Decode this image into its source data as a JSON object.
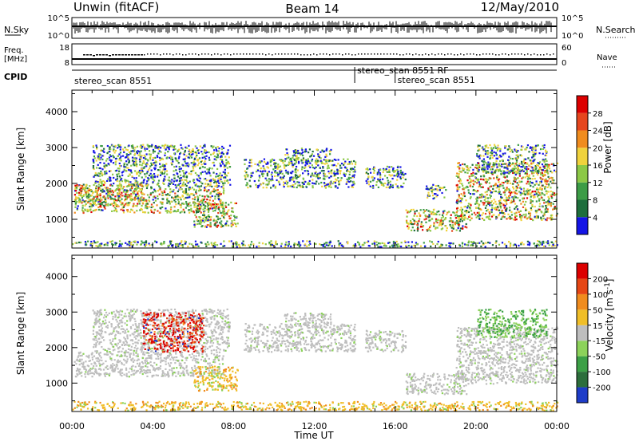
{
  "header": {
    "station": "Unwin (fitACF)",
    "beam": "Beam 14",
    "date": "12/May/2010"
  },
  "panels": {
    "nsky_label": "N.Sky",
    "nsky_ticks": [
      "10^5",
      "10^0"
    ],
    "nsearch_label": "N.Search",
    "freq_label": "Freq.",
    "freq_unit": "[MHz]",
    "freq_ticks": [
      "18",
      "8"
    ],
    "nave_ticks": [
      "60",
      "0"
    ],
    "nave_label": "Nave",
    "cpid_label": "CPID"
  },
  "cpid_events": [
    {
      "label": "stereo_scan 8551",
      "time": 0.0
    },
    {
      "label": "stereo_scan 8551 RF",
      "time": 14.0
    },
    {
      "label": "stereo_scan 8551",
      "time": 16.0
    }
  ],
  "chart_data": [
    {
      "type": "heatmap",
      "quantity": "power",
      "xlabel": "",
      "ylabel": "Slant Range [km]",
      "xlim": [
        0,
        24
      ],
      "ylim": [
        200,
        4600
      ],
      "colorbar_label": "Power [dB]",
      "colorbar_ticks": [
        "28",
        "24",
        "20",
        "16",
        "12",
        "8",
        "4"
      ],
      "colorbar_range": [
        0,
        32
      ],
      "colors": [
        "#1414e6",
        "#1e6e3c",
        "#3c9c46",
        "#8cc846",
        "#f0d23c",
        "#f08c1e",
        "#e6461e",
        "#dc0000"
      ]
    },
    {
      "type": "heatmap",
      "quantity": "velocity",
      "xlabel": "Time UT",
      "ylabel": "Slant Range [km]",
      "xlim": [
        0,
        24
      ],
      "ylim": [
        200,
        4600
      ],
      "colorbar_label": "Velocity [m s^-1]",
      "colorbar_ticks": [
        "200",
        "100",
        "50",
        "15",
        "-15",
        "-50",
        "-100",
        "-200"
      ],
      "colors": [
        "#1e3cc8",
        "#2d6e3c",
        "#3ca046",
        "#8cd25a",
        "#bebebe",
        "#f0be28",
        "#f08c1e",
        "#e64614",
        "#dc0000"
      ]
    }
  ],
  "time_ticks": [
    "00:00",
    "04:00",
    "08:00",
    "12:00",
    "16:00",
    "20:00",
    "00:00"
  ],
  "range_ticks": [
    "1000",
    "2000",
    "3000",
    "4000"
  ]
}
